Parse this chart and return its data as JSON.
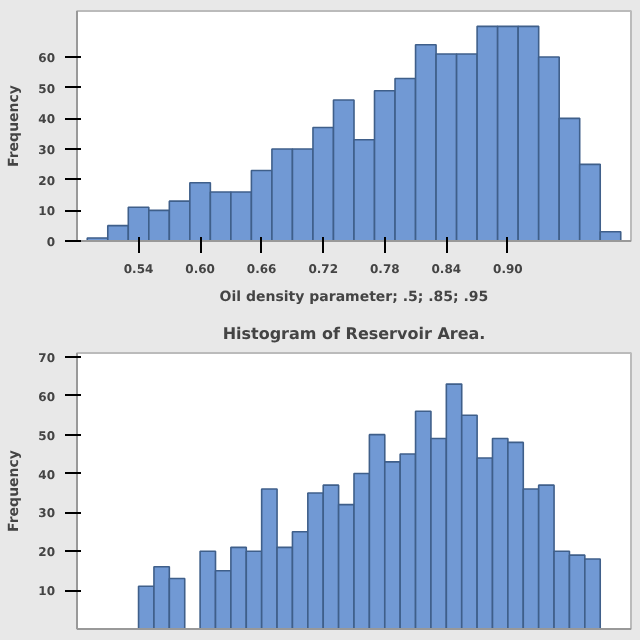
{
  "chart_data": [
    {
      "type": "histogram",
      "xlabel": "Oil density parameter; .5; .85; .95",
      "ylabel": "Frequency",
      "color": "#7199d4",
      "bins": [
        0.49,
        0.51,
        0.53,
        0.55,
        0.57,
        0.59,
        0.61,
        0.63,
        0.65,
        0.67,
        0.69,
        0.71,
        0.73,
        0.75,
        0.77,
        0.79,
        0.81,
        0.83,
        0.85,
        0.87,
        0.89,
        0.91,
        0.93,
        0.95,
        0.97,
        0.99,
        1.01
      ],
      "values": [
        1,
        5,
        11,
        10,
        13,
        19,
        16,
        16,
        23,
        30,
        30,
        37,
        46,
        33,
        49,
        53,
        64,
        61,
        61,
        70,
        70,
        70,
        60,
        40,
        25,
        3
      ],
      "xlim": [
        0.48,
        1.02
      ],
      "ylim": [
        0,
        75
      ],
      "xticks": [
        0.54,
        {
          "value": 0.6,
          "label": "0.60"
        },
        0.66,
        0.72,
        0.78,
        0.84,
        {
          "value": 0.9,
          "label": "0.90"
        }
      ],
      "yticks": [
        0,
        10,
        20,
        30,
        40,
        50,
        60
      ],
      "grid": false
    },
    {
      "type": "bar",
      "title": "Histogram of Reservoir Area.",
      "ylabel": "Frequency",
      "color": "#7199d4",
      "categories": [
        null,
        null,
        null,
        null,
        null,
        null,
        null,
        null,
        null,
        null,
        null,
        null,
        null,
        null,
        null,
        null,
        null,
        null,
        null,
        null,
        null,
        null,
        null,
        null,
        null,
        null,
        null,
        null,
        null,
        null,
        null,
        null,
        null,
        null,
        null,
        null
      ],
      "values": [
        null,
        null,
        null,
        null,
        11,
        16,
        13,
        null,
        20,
        15,
        21,
        20,
        36,
        21,
        25,
        35,
        37,
        32,
        40,
        50,
        43,
        45,
        56,
        49,
        63,
        55,
        44,
        49,
        48,
        36,
        37,
        20,
        19,
        18,
        null,
        null
      ],
      "ylim": [
        0,
        71
      ],
      "yticks": [
        10,
        20,
        30,
        40,
        50,
        60,
        70
      ],
      "tick_labels": "y",
      "grid": false
    }
  ]
}
